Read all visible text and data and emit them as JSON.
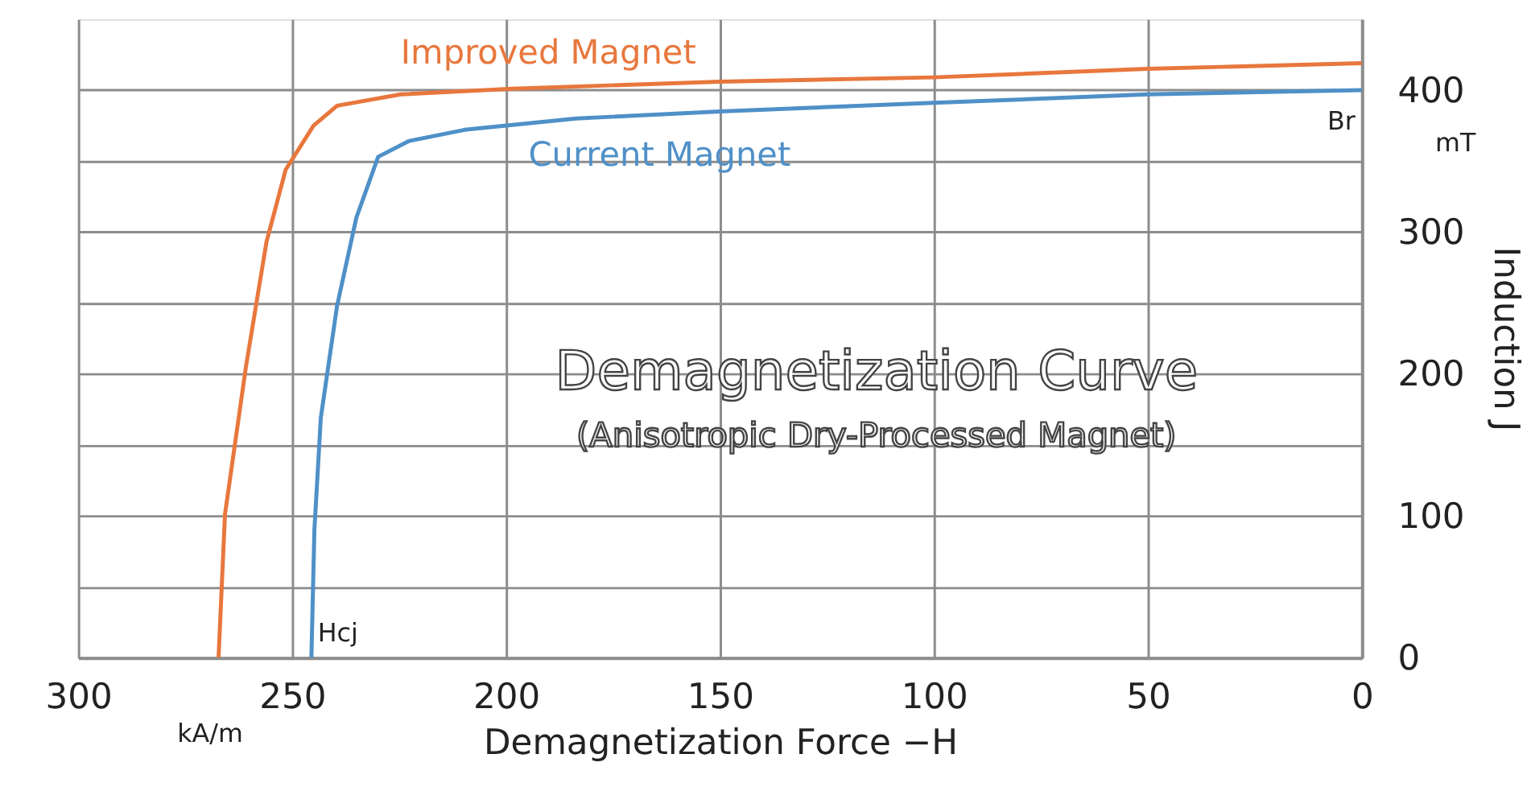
{
  "chart_data": {
    "type": "line",
    "title": "Demagnetization Curve",
    "subtitle": "(Anisotropic Dry-Processed Magnet)",
    "xlabel": "Demagnetization Force −H",
    "ylabel": "Induction J",
    "xlim": [
      300,
      0
    ],
    "xticks": [
      300,
      250,
      200,
      150,
      100,
      50,
      0
    ],
    "ylim": [
      0,
      450
    ],
    "yticks": [
      0,
      {
        "value": 50,
        "label": null
      },
      100,
      {
        "value": 150,
        "label": null
      },
      200,
      {
        "value": 250,
        "label": null
      },
      300,
      {
        "value": 350,
        "label": null
      },
      400
    ],
    "grid": true,
    "legend": false,
    "marker": "none",
    "line_style": "solid",
    "series": [
      {
        "name": "Improved Magnet",
        "color": "#e8773d",
        "x": [
          267.2,
          265.7,
          260.8,
          256,
          251.5,
          245,
          239.5,
          224.6,
          198.5,
          150,
          100,
          50,
          0
        ],
        "values": [
          0,
          101,
          205,
          293,
          344,
          375,
          389,
          397,
          401,
          406,
          409,
          415,
          419
        ]
      },
      {
        "name": "Current Magnet",
        "color": "#4f90c8",
        "x": [
          245.5,
          244.8,
          243.3,
          239.5,
          235,
          229.9,
          222.8,
          209.7,
          183.6,
          150,
          100,
          50,
          0
        ],
        "values": [
          0,
          90,
          169,
          248,
          310,
          353,
          364,
          372,
          380,
          385,
          391,
          397,
          400
        ]
      }
    ],
    "annotations": [
      "Br",
      "Hcj",
      "kA/m",
      "mT"
    ]
  }
}
